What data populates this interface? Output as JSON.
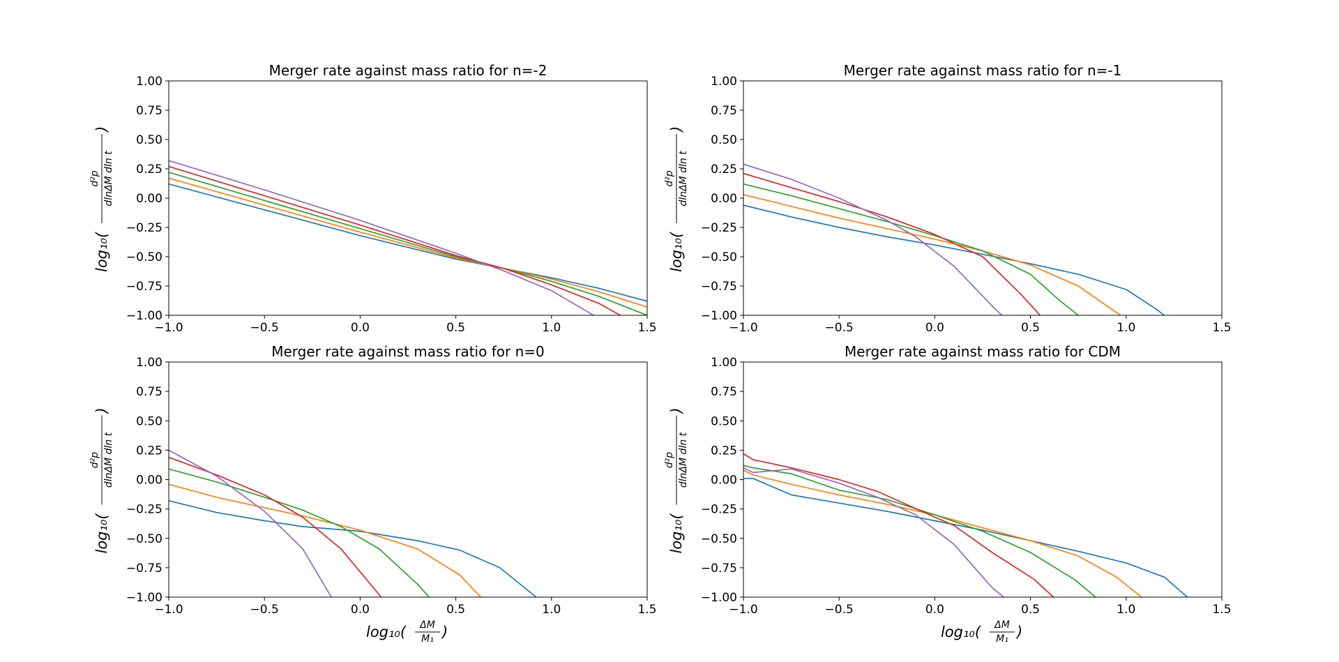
{
  "figure": {
    "background": "#ffffff"
  },
  "chart_data": [
    {
      "type": "line",
      "title": "Merger rate against mass ratio for n=-2",
      "xlabel": "",
      "ylabel": "log10(d2p / dlnΔM dln t)",
      "xlim": [
        -1.0,
        1.5
      ],
      "ylim": [
        -1.0,
        1.0
      ],
      "xticks": [
        "−1.0",
        "−0.5",
        "0.0",
        "0.5",
        "1.0",
        "1.5"
      ],
      "yticks": [
        "1.00",
        "0.75",
        "0.50",
        "0.25",
        "0.00",
        "−0.25",
        "−0.50",
        "−0.75",
        "−1.00"
      ],
      "grid": false,
      "series": [
        {
          "color": "#1f77b4",
          "x": [
            -1.0,
            -0.5,
            0.0,
            0.5,
            0.75,
            1.0,
            1.25,
            1.5
          ],
          "y": [
            0.12,
            -0.1,
            -0.32,
            -0.52,
            -0.6,
            -0.68,
            -0.77,
            -0.88
          ]
        },
        {
          "color": "#ff7f0e",
          "x": [
            -1.0,
            -0.5,
            0.0,
            0.5,
            0.75,
            1.0,
            1.25,
            1.5
          ],
          "y": [
            0.17,
            -0.06,
            -0.29,
            -0.51,
            -0.6,
            -0.69,
            -0.8,
            -0.93
          ]
        },
        {
          "color": "#2ca02c",
          "x": [
            -1.0,
            -0.5,
            0.0,
            0.5,
            0.75,
            1.0,
            1.25,
            1.5
          ],
          "y": [
            0.22,
            -0.02,
            -0.26,
            -0.5,
            -0.6,
            -0.71,
            -0.84,
            -1.0
          ]
        },
        {
          "color": "#d62728",
          "x": [
            -1.0,
            -0.5,
            0.0,
            0.5,
            0.75,
            1.0,
            1.25,
            1.36
          ],
          "y": [
            0.27,
            0.02,
            -0.23,
            -0.49,
            -0.6,
            -0.74,
            -0.9,
            -1.0
          ]
        },
        {
          "color": "#9467bd",
          "x": [
            -1.0,
            -0.5,
            0.0,
            0.5,
            0.75,
            1.0,
            1.22
          ],
          "y": [
            0.32,
            0.07,
            -0.19,
            -0.47,
            -0.62,
            -0.79,
            -1.0
          ]
        }
      ]
    },
    {
      "type": "line",
      "title": "Merger rate against mass ratio for n=-1",
      "xlabel": "",
      "ylabel": "log10(d2p / dlnΔM dln t)",
      "xlim": [
        -1.0,
        1.5
      ],
      "ylim": [
        -1.0,
        1.0
      ],
      "xticks": [
        "−1.0",
        "−0.5",
        "0.0",
        "0.5",
        "1.0",
        "1.5"
      ],
      "yticks": [
        "1.00",
        "0.75",
        "0.50",
        "0.25",
        "0.00",
        "−0.25",
        "−0.50",
        "−0.75",
        "−1.00"
      ],
      "grid": false,
      "series": [
        {
          "color": "#1f77b4",
          "x": [
            -1.0,
            -0.75,
            -0.5,
            -0.25,
            0.0,
            0.25,
            0.5,
            0.75,
            1.0,
            1.15,
            1.2
          ],
          "y": [
            -0.06,
            -0.16,
            -0.25,
            -0.33,
            -0.4,
            -0.48,
            -0.56,
            -0.65,
            -0.78,
            -0.94,
            -1.0
          ]
        },
        {
          "color": "#ff7f0e",
          "x": [
            -1.0,
            -0.75,
            -0.5,
            -0.25,
            0.0,
            0.25,
            0.5,
            0.75,
            0.97
          ],
          "y": [
            0.03,
            -0.07,
            -0.17,
            -0.26,
            -0.35,
            -0.45,
            -0.57,
            -0.75,
            -1.0
          ]
        },
        {
          "color": "#2ca02c",
          "x": [
            -1.0,
            -0.75,
            -0.5,
            -0.25,
            0.0,
            0.25,
            0.5,
            0.65,
            0.75
          ],
          "y": [
            0.12,
            0.02,
            -0.09,
            -0.2,
            -0.32,
            -0.45,
            -0.65,
            -0.87,
            -1.0
          ]
        },
        {
          "color": "#d62728",
          "x": [
            -1.0,
            -0.75,
            -0.5,
            -0.25,
            0.0,
            0.25,
            0.45,
            0.55
          ],
          "y": [
            0.21,
            0.09,
            -0.03,
            -0.16,
            -0.31,
            -0.5,
            -0.82,
            -1.0
          ]
        },
        {
          "color": "#9467bd",
          "x": [
            -1.0,
            -0.75,
            -0.5,
            -0.25,
            -0.1,
            0.1,
            0.3,
            0.35
          ],
          "y": [
            0.29,
            0.16,
            0.0,
            -0.19,
            -0.33,
            -0.58,
            -0.92,
            -1.0
          ]
        }
      ]
    },
    {
      "type": "line",
      "title": "Merger rate against mass ratio for n=0",
      "xlabel": "log10(ΔM / M1)",
      "ylabel": "log10(d2p / dlnΔM dln t)",
      "xlim": [
        -1.0,
        1.5
      ],
      "ylim": [
        -1.0,
        1.0
      ],
      "xticks": [
        "−1.0",
        "−0.5",
        "0.0",
        "0.5",
        "1.0",
        "1.5"
      ],
      "yticks": [
        "1.00",
        "0.75",
        "0.50",
        "0.25",
        "0.00",
        "−0.25",
        "−0.50",
        "−0.75",
        "−1.00"
      ],
      "grid": false,
      "series": [
        {
          "color": "#1f77b4",
          "x": [
            -1.0,
            -0.75,
            -0.5,
            -0.3,
            0.0,
            0.3,
            0.52,
            0.73,
            0.92
          ],
          "y": [
            -0.18,
            -0.28,
            -0.35,
            -0.4,
            -0.44,
            -0.52,
            -0.6,
            -0.75,
            -1.0
          ]
        },
        {
          "color": "#ff7f0e",
          "x": [
            -1.0,
            -0.75,
            -0.5,
            -0.3,
            0.0,
            0.3,
            0.52,
            0.63
          ],
          "y": [
            -0.04,
            -0.15,
            -0.24,
            -0.31,
            -0.43,
            -0.59,
            -0.81,
            -1.0
          ]
        },
        {
          "color": "#2ca02c",
          "x": [
            -1.0,
            -0.75,
            -0.5,
            -0.3,
            -0.1,
            0.1,
            0.3,
            0.36
          ],
          "y": [
            0.09,
            -0.02,
            -0.15,
            -0.26,
            -0.4,
            -0.59,
            -0.89,
            -1.0
          ]
        },
        {
          "color": "#d62728",
          "x": [
            -1.0,
            -0.75,
            -0.5,
            -0.3,
            -0.1,
            0.11
          ],
          "y": [
            0.19,
            0.04,
            -0.13,
            -0.32,
            -0.59,
            -1.0
          ]
        },
        {
          "color": "#9467bd",
          "x": [
            -1.0,
            -0.75,
            -0.5,
            -0.3,
            -0.15
          ],
          "y": [
            0.25,
            0.03,
            -0.27,
            -0.59,
            -1.0
          ]
        }
      ]
    },
    {
      "type": "line",
      "title": "Merger rate against mass ratio for CDM",
      "xlabel": "log10(ΔM / M1)",
      "ylabel": "log10(d2p / dlnΔM dln t)",
      "xlim": [
        -1.0,
        1.5
      ],
      "ylim": [
        -1.0,
        1.0
      ],
      "xticks": [
        "−1.0",
        "−0.5",
        "0.0",
        "0.5",
        "1.0",
        "1.5"
      ],
      "yticks": [
        "1.00",
        "0.75",
        "0.50",
        "0.25",
        "0.00",
        "−0.25",
        "−0.50",
        "−0.75",
        "−1.00"
      ],
      "grid": false,
      "series": [
        {
          "color": "#1f77b4",
          "x": [
            -1.0,
            -0.95,
            -0.75,
            -0.5,
            -0.25,
            0.0,
            0.25,
            0.5,
            0.75,
            1.0,
            1.2,
            1.32
          ],
          "y": [
            0.01,
            0.01,
            -0.13,
            -0.2,
            -0.27,
            -0.35,
            -0.43,
            -0.52,
            -0.61,
            -0.71,
            -0.83,
            -1.0
          ]
        },
        {
          "color": "#ff7f0e",
          "x": [
            -1.0,
            -0.95,
            -0.75,
            -0.5,
            -0.25,
            0.0,
            0.25,
            0.5,
            0.75,
            0.95,
            1.08
          ],
          "y": [
            0.08,
            0.04,
            -0.04,
            -0.13,
            -0.21,
            -0.3,
            -0.41,
            -0.52,
            -0.65,
            -0.83,
            -1.0
          ]
        },
        {
          "color": "#2ca02c",
          "x": [
            -1.0,
            -0.95,
            -0.75,
            -0.5,
            -0.25,
            0.0,
            0.25,
            0.5,
            0.73,
            0.84
          ],
          "y": [
            0.12,
            0.1,
            0.05,
            -0.09,
            -0.17,
            -0.3,
            -0.44,
            -0.62,
            -0.85,
            -1.0
          ]
        },
        {
          "color": "#d62728",
          "x": [
            -1.0,
            -0.95,
            -0.75,
            -0.5,
            -0.3,
            0.0,
            0.1,
            0.3,
            0.52,
            0.62
          ],
          "y": [
            0.22,
            0.17,
            0.1,
            0.0,
            -0.1,
            -0.32,
            -0.39,
            -0.62,
            -0.85,
            -1.0
          ]
        },
        {
          "color": "#9467bd",
          "x": [
            -1.0,
            -0.95,
            -0.75,
            -0.5,
            -0.3,
            -0.1,
            0.1,
            0.3,
            0.36
          ],
          "y": [
            0.1,
            0.06,
            0.09,
            -0.03,
            -0.15,
            -0.3,
            -0.55,
            -0.92,
            -1.0
          ]
        }
      ]
    }
  ]
}
